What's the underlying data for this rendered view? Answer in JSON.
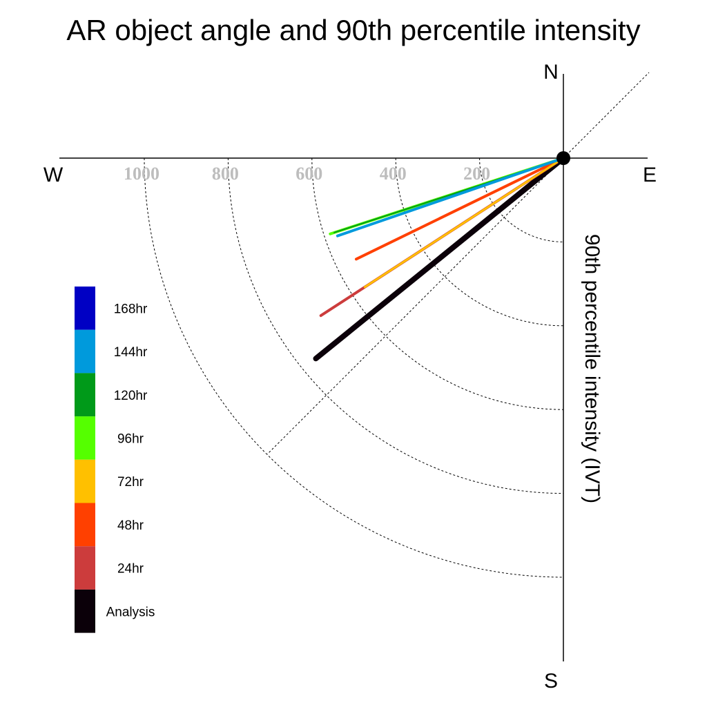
{
  "chart_data": {
    "type": "line",
    "title": "AR object angle and 90th percentile intensity",
    "ylabel": "90th percentile intensity (IVT)",
    "compass": {
      "north": "N",
      "south": "S",
      "east": "E",
      "west": "W"
    },
    "radial_ticks": [
      "200",
      "400",
      "600",
      "800",
      "1000"
    ],
    "radial_values": [
      200,
      400,
      600,
      800,
      1000
    ],
    "radial_max": 1000,
    "grid": true,
    "legend_position": "lower-left",
    "series": [
      {
        "name": "Analysis",
        "color": "#0b0009",
        "angle_deg": 219,
        "intensity": 760,
        "width": 8
      },
      {
        "name": "24hr",
        "color": "#cc3c3c",
        "angle_deg": 213,
        "intensity": 690,
        "width": 4
      },
      {
        "name": "48hr",
        "color": "#ff4000",
        "angle_deg": 206,
        "intensity": 550,
        "width": 4
      },
      {
        "name": "72hr",
        "color": "#ffc000",
        "angle_deg": 213,
        "intensity": 565,
        "width": 3
      },
      {
        "name": "96hr",
        "color": "#55ff00",
        "angle_deg": 198,
        "intensity": 585,
        "width": 4
      },
      {
        "name": "120hr",
        "color": "#009a19",
        "angle_deg": 198,
        "intensity": 575,
        "width": 2
      },
      {
        "name": "144hr",
        "color": "#009adc",
        "angle_deg": 199,
        "intensity": 570,
        "width": 4
      }
    ],
    "legend": [
      {
        "name": "168hr",
        "color": "#0000c4"
      },
      {
        "name": "144hr",
        "color": "#009adc"
      },
      {
        "name": "120hr",
        "color": "#009a19"
      },
      {
        "name": "96hr",
        "color": "#55ff00"
      },
      {
        "name": "72hr",
        "color": "#ffc000"
      },
      {
        "name": "48hr",
        "color": "#ff4000"
      },
      {
        "name": "24hr",
        "color": "#cc3c3c"
      },
      {
        "name": "Analysis",
        "color": "#0b0009"
      }
    ]
  }
}
